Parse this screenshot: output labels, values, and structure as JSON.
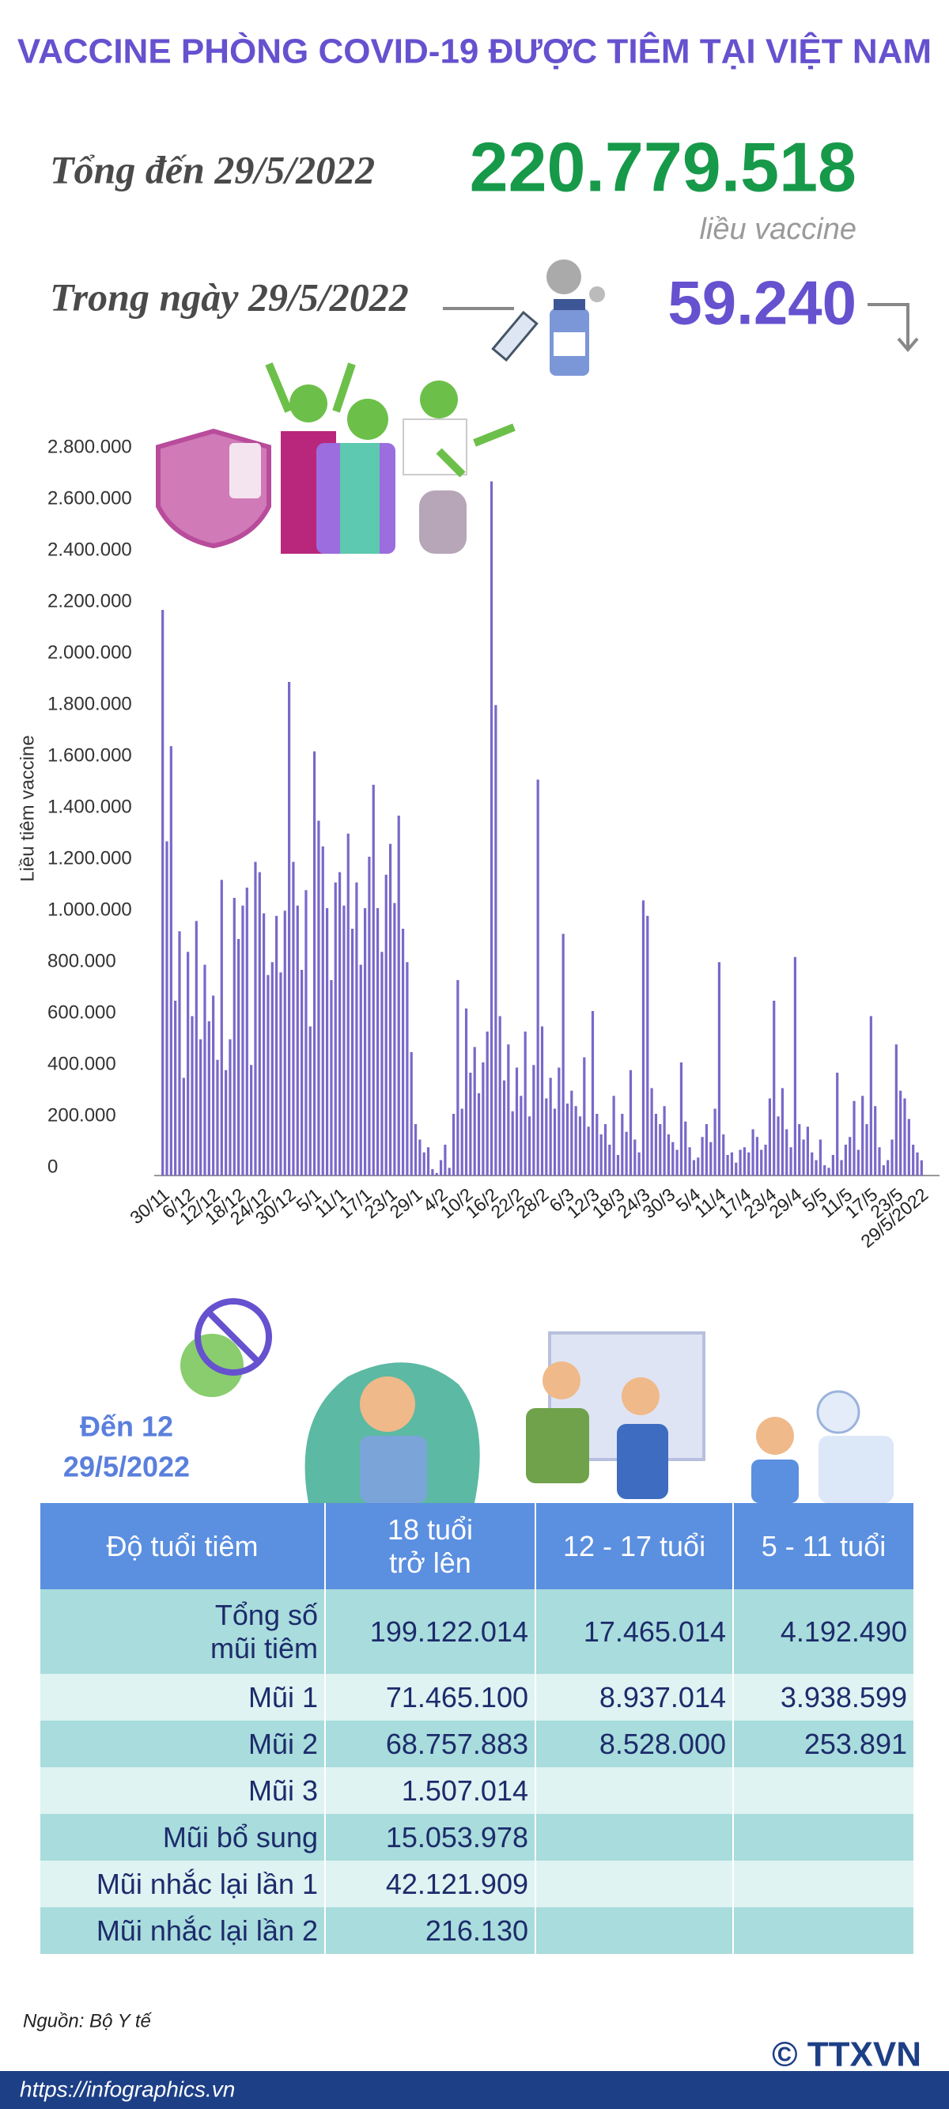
{
  "header": {
    "title": "VACCINE PHÒNG COVID-19 ĐƯỢC TIÊM TẠI VIỆT NAM"
  },
  "summary": {
    "total_label": "Tổng đến 29/5/2022",
    "total_value": "220.779.518",
    "total_unit": "liều vaccine",
    "day_label": "Trong ngày 29/5/2022",
    "day_value": "59.240"
  },
  "chart_data": {
    "type": "bar",
    "y_label": "Liều tiêm vaccine",
    "color": "#7a68c9",
    "categories": [
      "30/11",
      null,
      null,
      null,
      null,
      null,
      "6/12",
      null,
      null,
      null,
      null,
      null,
      "12/12",
      null,
      null,
      null,
      null,
      null,
      "18/12",
      null,
      null,
      null,
      null,
      null,
      "24/12",
      null,
      null,
      null,
      null,
      null,
      "30/12",
      null,
      null,
      null,
      null,
      null,
      "5/1",
      null,
      null,
      null,
      null,
      null,
      "11/1",
      null,
      null,
      null,
      null,
      null,
      "17/1",
      null,
      null,
      null,
      null,
      null,
      "23/1",
      null,
      null,
      null,
      null,
      null,
      "29/1",
      null,
      null,
      null,
      null,
      null,
      "4/2",
      null,
      null,
      null,
      null,
      null,
      "10/2",
      null,
      null,
      null,
      null,
      null,
      "16/2",
      null,
      null,
      null,
      null,
      null,
      "22/2",
      null,
      null,
      null,
      null,
      null,
      "28/2",
      null,
      null,
      null,
      null,
      null,
      "6/3",
      null,
      null,
      null,
      null,
      null,
      "12/3",
      null,
      null,
      null,
      null,
      null,
      "18/3",
      null,
      null,
      null,
      null,
      null,
      "24/3",
      null,
      null,
      null,
      null,
      null,
      "30/3",
      null,
      null,
      null,
      null,
      null,
      "5/4",
      null,
      null,
      null,
      null,
      null,
      "11/4",
      null,
      null,
      null,
      null,
      null,
      "17/4",
      null,
      null,
      null,
      null,
      null,
      "23/4",
      null,
      null,
      null,
      null,
      null,
      "29/4",
      null,
      null,
      null,
      null,
      null,
      "5/5",
      null,
      null,
      null,
      null,
      null,
      "11/5",
      null,
      null,
      null,
      null,
      null,
      "17/5",
      null,
      null,
      null,
      null,
      null,
      "23/5",
      null,
      null,
      null,
      null,
      null,
      "29/5/2022"
    ],
    "values": [
      2200000,
      1300000,
      1670000,
      680000,
      950000,
      380000,
      870000,
      620000,
      990000,
      530000,
      820000,
      600000,
      700000,
      450000,
      1150000,
      410000,
      530000,
      1080000,
      920000,
      1050000,
      1120000,
      430000,
      1220000,
      1180000,
      1020000,
      780000,
      830000,
      1010000,
      790000,
      1030000,
      1920000,
      1220000,
      1050000,
      800000,
      1110000,
      580000,
      1650000,
      1380000,
      1280000,
      1040000,
      760000,
      1140000,
      1180000,
      1050000,
      1330000,
      960000,
      1140000,
      820000,
      1040000,
      1240000,
      1520000,
      1040000,
      870000,
      1170000,
      1290000,
      1060000,
      1400000,
      960000,
      830000,
      480000,
      200000,
      140000,
      90000,
      110000,
      25000,
      10000,
      60000,
      120000,
      30000,
      240000,
      760000,
      260000,
      650000,
      400000,
      500000,
      320000,
      440000,
      560000,
      2700000,
      1830000,
      620000,
      370000,
      510000,
      250000,
      420000,
      310000,
      560000,
      230000,
      430000,
      1540000,
      580000,
      300000,
      380000,
      260000,
      420000,
      940000,
      280000,
      330000,
      270000,
      230000,
      460000,
      190000,
      640000,
      240000,
      160000,
      200000,
      120000,
      310000,
      80000,
      240000,
      170000,
      410000,
      140000,
      90000,
      1070000,
      1010000,
      340000,
      240000,
      200000,
      270000,
      160000,
      130000,
      100000,
      440000,
      210000,
      110000,
      60000,
      70000,
      150000,
      200000,
      130000,
      260000,
      830000,
      160000,
      80000,
      90000,
      50000,
      100000,
      110000,
      90000,
      180000,
      150000,
      100000,
      120000,
      300000,
      680000,
      230000,
      340000,
      180000,
      110000,
      850000,
      200000,
      140000,
      190000,
      90000,
      60000,
      140000,
      40000,
      30000,
      80000,
      400000,
      60000,
      120000,
      150000,
      290000,
      100000,
      310000,
      200000,
      620000,
      270000,
      110000,
      40000,
      60000,
      140000,
      510000,
      330000,
      300000,
      220000,
      120000,
      90000,
      59240
    ],
    "ylim": [
      0,
      2800000
    ],
    "yticks": [
      0,
      {
        "value": 200000,
        "label": "200.000"
      },
      {
        "value": 400000,
        "label": "400.000"
      },
      {
        "value": 600000,
        "label": "600.000"
      },
      {
        "value": 800000,
        "label": "800.000"
      },
      {
        "value": 1000000,
        "label": "1.000.000"
      },
      {
        "value": 1200000,
        "label": "1.200.000"
      },
      {
        "value": 1400000,
        "label": "1.400.000"
      },
      {
        "value": 1600000,
        "label": "1.600.000"
      },
      {
        "value": 1800000,
        "label": "1.800.000"
      },
      {
        "value": 2000000,
        "label": "2.000.000"
      },
      {
        "value": 2200000,
        "label": "2.200.000"
      },
      {
        "value": 2400000,
        "label": "2.400.000"
      },
      {
        "value": 2600000,
        "label": "2.600.000"
      },
      {
        "value": 2800000,
        "label": "2.800.000"
      }
    ],
    "grid": false
  },
  "age_section": {
    "label_lines": [
      "Đến 12",
      "29/5/2022"
    ]
  },
  "table": {
    "header": [
      [
        "Độ tuổi tiêm"
      ],
      [
        "18 tuổi",
        "trở lên"
      ],
      [
        "12 - 17 tuổi"
      ],
      [
        "5 - 11 tuổi"
      ]
    ],
    "rows": [
      [
        [
          "Tổng số",
          "mũi tiêm"
        ],
        "199.122.014",
        "17.465.014",
        "4.192.490"
      ],
      [
        "Mũi 1",
        "71.465.100",
        "8.937.014",
        "3.938.599"
      ],
      [
        "Mũi 2",
        "68.757.883",
        "8.528.000",
        "253.891"
      ],
      [
        "Mũi 3",
        "1.507.014",
        null,
        null
      ],
      [
        "Mũi bổ sung",
        "15.053.978",
        null,
        null
      ],
      [
        "Mũi nhắc lại lần 1",
        "42.121.909",
        null,
        null
      ],
      [
        "Mũi nhắc lại lần 2",
        "216.130",
        null,
        null
      ]
    ]
  },
  "footer": {
    "source": "Nguồn: Bộ Y tế",
    "url": "https://infographics.vn",
    "logo": "© TTXVN"
  }
}
